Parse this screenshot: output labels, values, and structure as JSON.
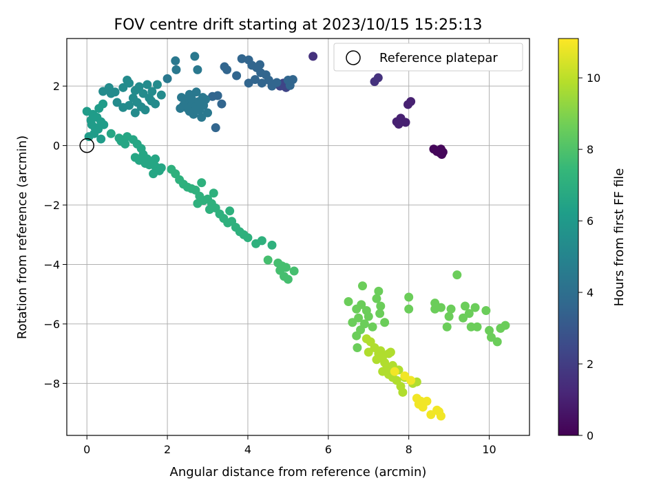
{
  "chart_data": {
    "type": "scatter",
    "title": "FOV centre drift starting at 2023/10/15 15:25:13",
    "xlabel": "Angular distance from reference (arcmin)",
    "ylabel": "Rotation from reference (arcmin)",
    "xlim": [
      -0.5,
      11.0
    ],
    "ylim": [
      -9.75,
      3.6
    ],
    "xticks": [
      "0",
      "2",
      "4",
      "6",
      "8",
      "10"
    ],
    "yticks": [
      "−8",
      "−6",
      "−4",
      "−2",
      "0",
      "2"
    ],
    "grid": true,
    "legend_position": "top-right",
    "legend_label": "Reference platepar",
    "reference_point": {
      "x": 0,
      "y": 0
    },
    "colorbar": {
      "label": "Hours from first FF file",
      "range": [
        0,
        11.1
      ],
      "ticks": [
        "0",
        "2",
        "4",
        "6",
        "8",
        "10"
      ],
      "colormap": "viridis"
    },
    "clusters": [
      {
        "hours": 0.2,
        "points": [
          [
            8.62,
            -0.12
          ],
          [
            8.72,
            -0.17
          ],
          [
            8.78,
            -0.25
          ],
          [
            8.82,
            -0.3
          ],
          [
            8.85,
            -0.22
          ],
          [
            8.8,
            -0.12
          ],
          [
            8.7,
            -0.2
          ]
        ]
      },
      {
        "hours": 1.0,
        "points": [
          [
            7.7,
            0.8
          ],
          [
            7.8,
            0.92
          ],
          [
            7.92,
            0.78
          ],
          [
            7.98,
            1.38
          ],
          [
            8.05,
            1.48
          ],
          [
            7.75,
            0.72
          ]
        ]
      },
      {
        "hours": 1.6,
        "points": [
          [
            7.15,
            2.15
          ],
          [
            7.24,
            2.28
          ],
          [
            5.62,
            3.0
          ]
        ]
      },
      {
        "hours": 2.3,
        "points": [
          [
            4.8,
            2.0
          ],
          [
            4.88,
            2.1
          ],
          [
            4.95,
            1.95
          ],
          [
            5.02,
            2.06
          ]
        ]
      },
      {
        "hours": 3.6,
        "points": [
          [
            3.85,
            2.92
          ],
          [
            4.02,
            2.88
          ],
          [
            4.1,
            2.7
          ],
          [
            4.22,
            2.62
          ],
          [
            4.32,
            2.45
          ],
          [
            4.45,
            2.38
          ],
          [
            4.52,
            2.2
          ],
          [
            4.35,
            2.1
          ],
          [
            4.18,
            2.22
          ],
          [
            4.3,
            2.72
          ],
          [
            4.02,
            2.1
          ],
          [
            4.6,
            2.0
          ],
          [
            4.72,
            2.12
          ],
          [
            5.0,
            2.2
          ],
          [
            5.12,
            2.22
          ],
          [
            5.05,
            2.02
          ],
          [
            3.48,
            2.55
          ],
          [
            3.42,
            2.65
          ],
          [
            3.72,
            2.35
          ],
          [
            3.25,
            1.68
          ],
          [
            3.12,
            1.65
          ],
          [
            3.35,
            1.4
          ],
          [
            3.2,
            0.6
          ]
        ]
      },
      {
        "hours": 4.4,
        "points": [
          [
            2.2,
            2.85
          ],
          [
            2.68,
            3.0
          ],
          [
            2.75,
            2.55
          ],
          [
            2.22,
            2.55
          ],
          [
            2.0,
            2.25
          ],
          [
            2.35,
            1.62
          ],
          [
            2.45,
            1.5
          ],
          [
            2.55,
            1.72
          ],
          [
            2.62,
            1.4
          ],
          [
            2.72,
            1.8
          ],
          [
            2.8,
            1.2
          ],
          [
            2.9,
            1.35
          ],
          [
            3.0,
            1.1
          ],
          [
            2.65,
            1.05
          ],
          [
            2.85,
            0.95
          ],
          [
            2.5,
            1.25
          ],
          [
            2.4,
            1.35
          ],
          [
            2.95,
            1.55
          ],
          [
            2.7,
            1.3
          ],
          [
            2.6,
            1.58
          ],
          [
            2.78,
            1.48
          ],
          [
            2.88,
            1.62
          ],
          [
            2.55,
            1.15
          ],
          [
            2.32,
            1.25
          ]
        ]
      },
      {
        "hours": 5.3,
        "points": [
          [
            0.4,
            1.82
          ],
          [
            0.55,
            1.95
          ],
          [
            0.7,
            1.8
          ],
          [
            0.9,
            1.95
          ],
          [
            1.05,
            2.1
          ],
          [
            1.2,
            1.85
          ],
          [
            1.3,
            1.98
          ],
          [
            1.4,
            1.75
          ],
          [
            1.5,
            2.05
          ],
          [
            1.62,
            1.82
          ],
          [
            1.75,
            2.05
          ],
          [
            1.85,
            1.7
          ],
          [
            1.0,
            2.2
          ],
          [
            1.15,
            1.6
          ],
          [
            1.25,
            1.45
          ],
          [
            1.35,
            1.3
          ],
          [
            1.55,
            1.6
          ],
          [
            1.7,
            1.4
          ],
          [
            0.9,
            1.28
          ],
          [
            0.75,
            1.45
          ],
          [
            1.05,
            1.35
          ],
          [
            1.45,
            1.2
          ],
          [
            1.2,
            1.1
          ],
          [
            0.6,
            1.75
          ],
          [
            1.6,
            1.5
          ]
        ]
      },
      {
        "hours": 6.1,
        "points": [
          [
            0.0,
            1.15
          ],
          [
            0.15,
            1.05
          ],
          [
            0.1,
            0.85
          ],
          [
            0.25,
            0.95
          ],
          [
            0.35,
            0.8
          ],
          [
            0.2,
            0.6
          ],
          [
            0.05,
            0.3
          ],
          [
            0.3,
            1.25
          ],
          [
            0.4,
            1.4
          ],
          [
            0.42,
            0.7
          ],
          [
            0.18,
            0.4
          ],
          [
            0.28,
            0.55
          ],
          [
            0.12,
            0.7
          ],
          [
            0.35,
            0.22
          ]
        ]
      },
      {
        "hours": 6.6,
        "points": [
          [
            0.6,
            0.4
          ],
          [
            0.8,
            0.25
          ],
          [
            1.0,
            0.3
          ],
          [
            1.15,
            0.2
          ],
          [
            1.25,
            0.05
          ],
          [
            1.35,
            -0.1
          ],
          [
            1.4,
            -0.3
          ],
          [
            1.5,
            -0.45
          ],
          [
            1.6,
            -0.55
          ],
          [
            1.7,
            -0.7
          ],
          [
            1.8,
            -0.85
          ],
          [
            1.65,
            -0.95
          ],
          [
            1.55,
            -0.65
          ],
          [
            1.3,
            -0.5
          ],
          [
            1.2,
            -0.4
          ],
          [
            1.45,
            -0.6
          ],
          [
            0.95,
            0.05
          ],
          [
            0.85,
            0.15
          ],
          [
            1.7,
            -0.45
          ],
          [
            1.85,
            -0.75
          ]
        ]
      },
      {
        "hours": 7.1,
        "points": [
          [
            2.1,
            -0.8
          ],
          [
            2.2,
            -0.95
          ],
          [
            2.3,
            -1.15
          ],
          [
            2.4,
            -1.3
          ],
          [
            2.5,
            -1.4
          ],
          [
            2.6,
            -1.45
          ],
          [
            2.7,
            -1.5
          ],
          [
            2.8,
            -1.7
          ],
          [
            2.9,
            -1.85
          ],
          [
            3.0,
            -1.8
          ],
          [
            3.1,
            -1.95
          ],
          [
            3.2,
            -2.1
          ],
          [
            3.3,
            -2.3
          ],
          [
            3.4,
            -2.45
          ],
          [
            3.5,
            -2.6
          ],
          [
            3.6,
            -2.55
          ],
          [
            3.7,
            -2.75
          ],
          [
            3.8,
            -2.9
          ],
          [
            3.9,
            -3.0
          ],
          [
            4.0,
            -3.1
          ],
          [
            4.2,
            -3.3
          ],
          [
            4.35,
            -3.2
          ],
          [
            4.6,
            -3.35
          ],
          [
            2.85,
            -1.25
          ],
          [
            3.15,
            -1.6
          ],
          [
            3.55,
            -2.2
          ],
          [
            2.75,
            -1.95
          ],
          [
            3.05,
            -2.15
          ]
        ]
      },
      {
        "hours": 7.8,
        "points": [
          [
            4.5,
            -3.85
          ],
          [
            4.75,
            -3.95
          ],
          [
            4.85,
            -4.05
          ],
          [
            4.95,
            -4.1
          ],
          [
            4.9,
            -4.4
          ],
          [
            5.0,
            -4.5
          ],
          [
            5.15,
            -4.22
          ],
          [
            4.8,
            -4.2
          ]
        ]
      },
      {
        "hours": 8.6,
        "points": [
          [
            6.5,
            -5.25
          ],
          [
            6.7,
            -5.5
          ],
          [
            6.82,
            -5.35
          ],
          [
            6.95,
            -5.55
          ],
          [
            7.0,
            -5.75
          ],
          [
            6.9,
            -6.0
          ],
          [
            6.8,
            -6.2
          ],
          [
            6.7,
            -6.4
          ],
          [
            6.85,
            -4.72
          ],
          [
            7.25,
            -4.9
          ],
          [
            7.2,
            -5.15
          ],
          [
            7.3,
            -5.4
          ],
          [
            7.28,
            -5.65
          ],
          [
            7.4,
            -5.95
          ],
          [
            7.1,
            -6.1
          ],
          [
            6.72,
            -6.8
          ],
          [
            6.6,
            -5.95
          ],
          [
            6.75,
            -5.8
          ],
          [
            8.0,
            -5.1
          ],
          [
            8.0,
            -5.5
          ],
          [
            8.65,
            -5.3
          ],
          [
            8.8,
            -5.45
          ],
          [
            8.65,
            -5.5
          ],
          [
            9.05,
            -5.5
          ],
          [
            9.0,
            -5.75
          ],
          [
            8.95,
            -6.1
          ],
          [
            9.2,
            -4.35
          ],
          [
            9.4,
            -5.4
          ],
          [
            9.35,
            -5.8
          ],
          [
            9.55,
            -6.1
          ],
          [
            9.7,
            -6.1
          ],
          [
            9.5,
            -5.65
          ],
          [
            9.65,
            -5.45
          ],
          [
            9.92,
            -5.55
          ],
          [
            10.0,
            -6.22
          ],
          [
            10.05,
            -6.45
          ],
          [
            10.2,
            -6.6
          ],
          [
            10.28,
            -6.15
          ],
          [
            10.4,
            -6.05
          ]
        ]
      },
      {
        "hours": 9.8,
        "points": [
          [
            6.95,
            -6.5
          ],
          [
            7.05,
            -6.6
          ],
          [
            7.15,
            -6.8
          ],
          [
            7.25,
            -7.0
          ],
          [
            7.35,
            -7.1
          ],
          [
            7.4,
            -7.3
          ],
          [
            7.45,
            -7.5
          ],
          [
            7.5,
            -7.7
          ],
          [
            7.6,
            -7.8
          ],
          [
            7.7,
            -7.9
          ],
          [
            7.8,
            -8.1
          ],
          [
            7.85,
            -8.3
          ],
          [
            7.3,
            -6.9
          ],
          [
            7.2,
            -7.2
          ],
          [
            7.5,
            -7.0
          ],
          [
            7.35,
            -7.6
          ],
          [
            7.6,
            -7.4
          ],
          [
            7.0,
            -6.95
          ],
          [
            7.75,
            -7.55
          ],
          [
            7.9,
            -7.8
          ],
          [
            8.1,
            -8.0
          ],
          [
            8.2,
            -7.95
          ],
          [
            7.55,
            -6.95
          ]
        ]
      },
      {
        "hours": 10.9,
        "points": [
          [
            7.65,
            -7.6
          ],
          [
            7.9,
            -7.75
          ],
          [
            8.05,
            -7.9
          ],
          [
            8.2,
            -8.5
          ],
          [
            8.25,
            -8.7
          ],
          [
            8.35,
            -8.8
          ],
          [
            8.45,
            -8.6
          ],
          [
            8.55,
            -9.05
          ],
          [
            8.7,
            -8.9
          ],
          [
            8.8,
            -9.1
          ],
          [
            8.3,
            -8.6
          ],
          [
            8.75,
            -8.95
          ]
        ]
      }
    ]
  }
}
